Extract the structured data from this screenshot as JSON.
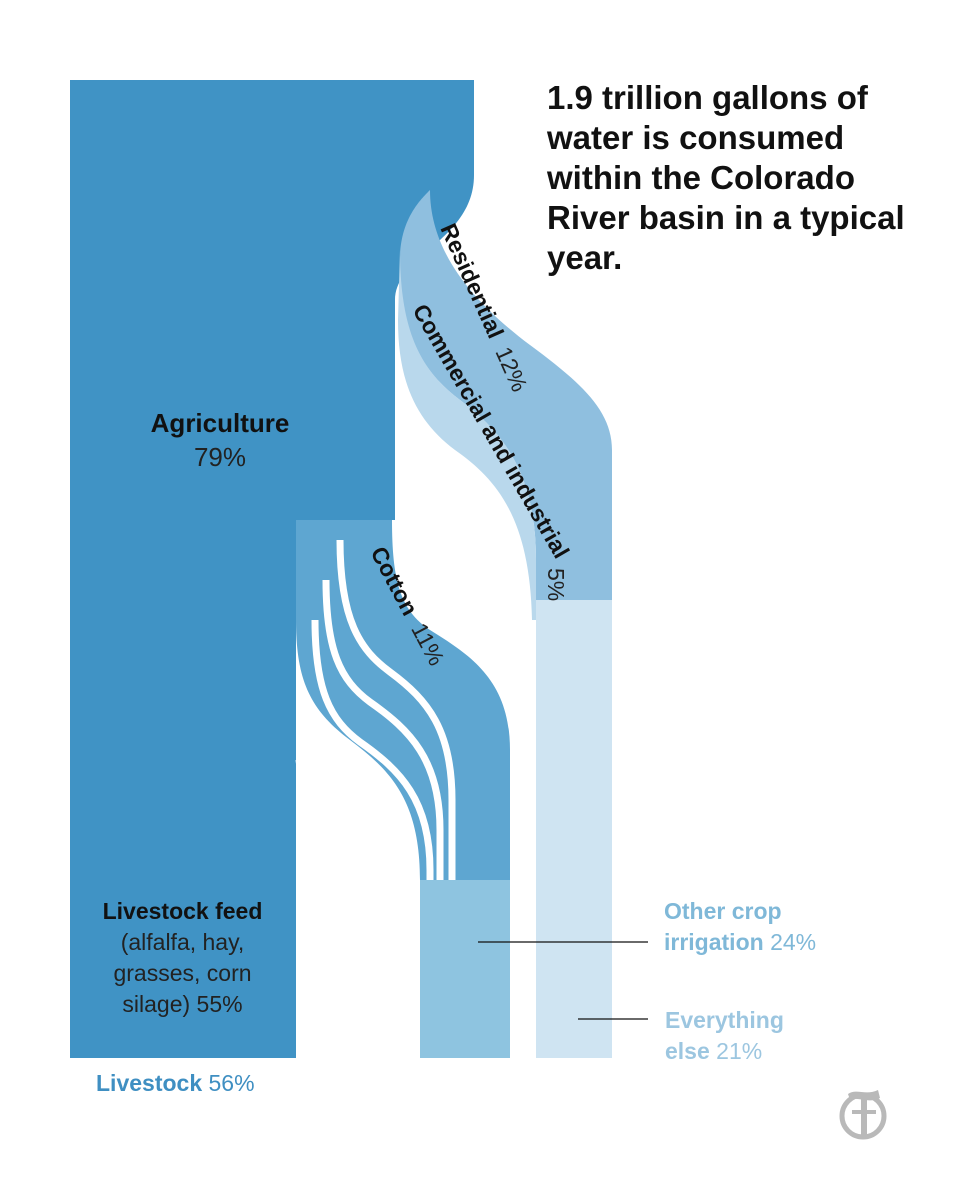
{
  "headline": "1.9 trillion gallons of water is consumed within the Colorado River basin in a typical year.",
  "labels": {
    "agriculture": {
      "name": "Agriculture",
      "pct": "79%"
    },
    "residential": {
      "name": "Residential",
      "pct": "12%"
    },
    "commercial": {
      "name": "Commercial and industrial",
      "pct": "5%"
    },
    "cotton": {
      "name": "Cotton",
      "pct": "11%"
    },
    "livestock_feed": {
      "name": "Livestock feed",
      "detail_1": "(alfalfa, hay,",
      "detail_2": "grasses, corn",
      "detail_3": "silage) 55%"
    },
    "livestock": {
      "name": "Livestock",
      "pct": "56%"
    },
    "other_crop": {
      "name_1": "Other crop",
      "name_2": "irrigation",
      "pct": "24%"
    },
    "everything_else": {
      "name_1": "Everything",
      "name_2": "else",
      "pct": "21%"
    }
  },
  "colors": {
    "agriculture": "#4093c5",
    "livestock": "#3a8cc0",
    "other_crop": "#8ec4e0",
    "everything_else": "#cfe4f2",
    "residential_flow": "#8fbfdf",
    "commercial_flow": "#b9d8ec"
  },
  "logo_icon": "nyt-logo-icon",
  "chart_data": {
    "type": "sankey",
    "title": "1.9 trillion gallons of water is consumed within the Colorado River basin in a typical year.",
    "units": "percent of total consumption",
    "sources": [
      {
        "name": "Agriculture",
        "value": 79
      },
      {
        "name": "Residential",
        "value": 12
      },
      {
        "name": "Commercial and industrial",
        "value": 5
      }
    ],
    "targets": [
      {
        "name": "Livestock",
        "value": 56
      },
      {
        "name": "Other crop irrigation",
        "value": 24
      },
      {
        "name": "Everything else",
        "value": 21
      }
    ],
    "flows": [
      {
        "from": "Agriculture",
        "to": "Livestock",
        "label": "Livestock feed (alfalfa, hay, grasses, corn silage)",
        "value": 55
      },
      {
        "from": "Agriculture",
        "to": "Other crop irrigation",
        "label": "Cotton",
        "value": 11
      },
      {
        "from": "Residential",
        "to": "Everything else",
        "value": 12
      },
      {
        "from": "Commercial and industrial",
        "to": "Everything else",
        "value": 5
      }
    ]
  }
}
